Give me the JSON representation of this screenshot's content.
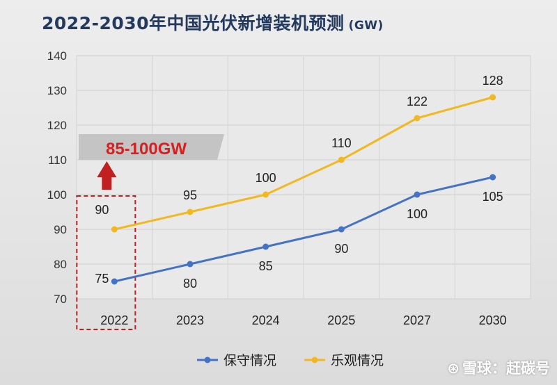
{
  "title": "2022-2030年中国光伏新增装机预测",
  "title_unit": "(GW)",
  "callout": {
    "text": "85-100GW"
  },
  "watermark": {
    "symbol": "⊛",
    "text": "雪球：赶碳号"
  },
  "colors": {
    "conservative": "#4472c4",
    "optimistic": "#f2b81f",
    "callout_text": "#d81e1e",
    "arrow": "#c0201f",
    "title": "#233a5e"
  },
  "chart_data": {
    "type": "line",
    "title": "2022-2030年中国光伏新增装机预测",
    "unit": "(GW)",
    "categories": [
      "2022",
      "2023",
      "2024",
      "2025",
      "2027",
      "2030"
    ],
    "ylim": [
      70,
      140
    ],
    "yticks": [
      70,
      80,
      90,
      100,
      110,
      120,
      130,
      140
    ],
    "grid": true,
    "legend_position": "bottom",
    "series": [
      {
        "name": "保守情况",
        "values": [
          75,
          80,
          85,
          90,
          100,
          105
        ],
        "color": "#4472c4"
      },
      {
        "name": "乐观情况",
        "values": [
          90,
          95,
          100,
          110,
          122,
          128
        ],
        "color": "#f2b81f"
      }
    ],
    "annotations": [
      {
        "text": "85-100GW",
        "category": "2022"
      }
    ]
  }
}
